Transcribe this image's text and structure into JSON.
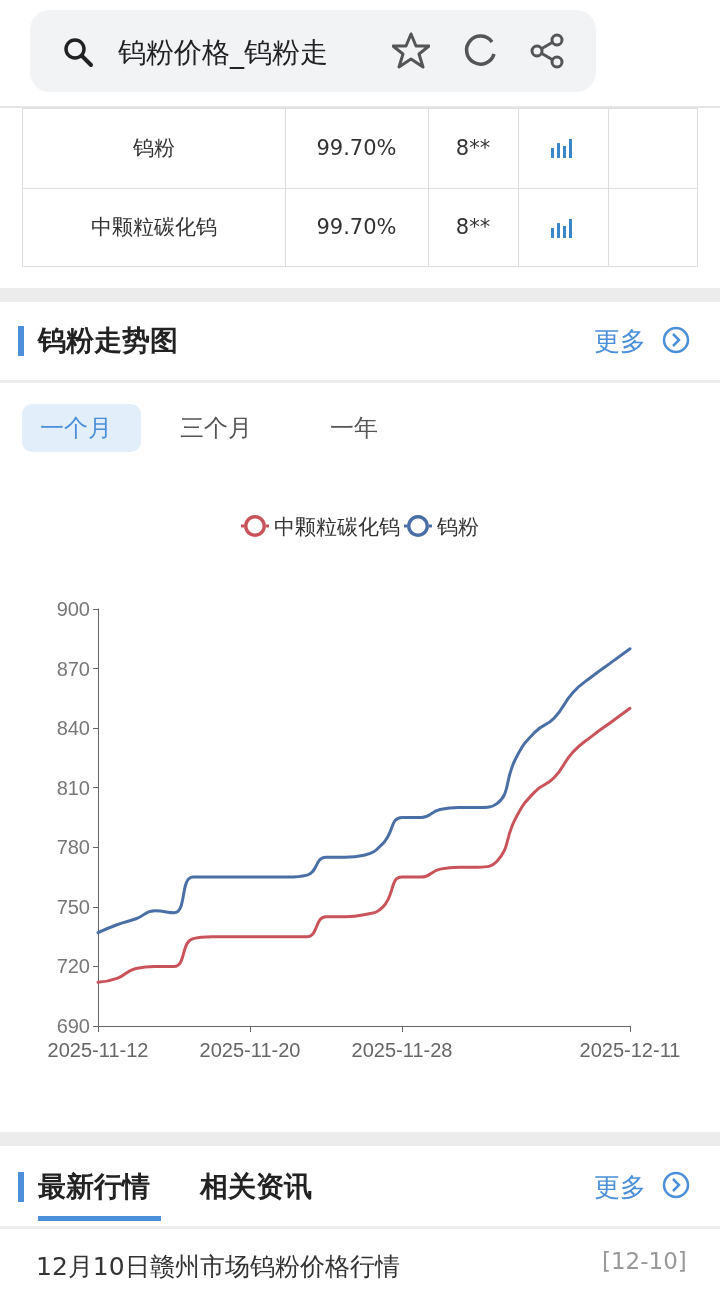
{
  "chart_data": {
    "type": "line",
    "title": "钨粉走势图",
    "annotations": [
      "钨粉价格_钨粉走",
      "钨粉",
      "99.70%",
      "8**",
      "中颗粒碳化钨",
      "99.70%",
      "8**",
      "更多",
      "一个月",
      "三个月",
      "一年",
      "最新行情",
      "相关资讯",
      "更多",
      "12月10日赣州市场钨粉价格行情",
      "[12-10]"
    ],
    "categories": [
      "2025-11-12",
      null,
      null,
      null,
      null,
      null,
      null,
      null,
      "2025-11-20",
      null,
      null,
      null,
      null,
      null,
      null,
      null,
      "2025-11-28",
      null,
      null,
      null,
      null,
      null,
      null,
      null,
      null,
      null,
      null,
      null,
      "2025-12-11"
    ],
    "series": [
      {
        "name": "中颗粒碳化钨",
        "color": "#c9535a",
        "values": [
          712,
          714,
          719,
          720,
          720,
          734,
          735,
          735,
          735,
          735,
          735,
          735,
          745,
          745,
          746,
          750,
          765,
          765,
          769,
          770,
          770,
          773,
          795,
          808,
          815,
          828,
          836,
          843,
          850
        ]
      },
      {
        "name": "钨粉",
        "color": "#4a6fa5",
        "values": [
          737,
          741,
          744,
          748,
          747,
          765,
          765,
          765,
          765,
          765,
          765,
          766,
          775,
          775,
          776,
          782,
          795,
          795,
          799,
          800,
          800,
          802,
          825,
          838,
          845,
          858,
          866,
          873,
          880
        ]
      }
    ],
    "ylim": [
      690,
      900
    ],
    "yticks": [
      690,
      720,
      750,
      780,
      810,
      840,
      870,
      900
    ],
    "grid": false,
    "legend": "top",
    "marker": "none",
    "line_style": "solid"
  }
}
